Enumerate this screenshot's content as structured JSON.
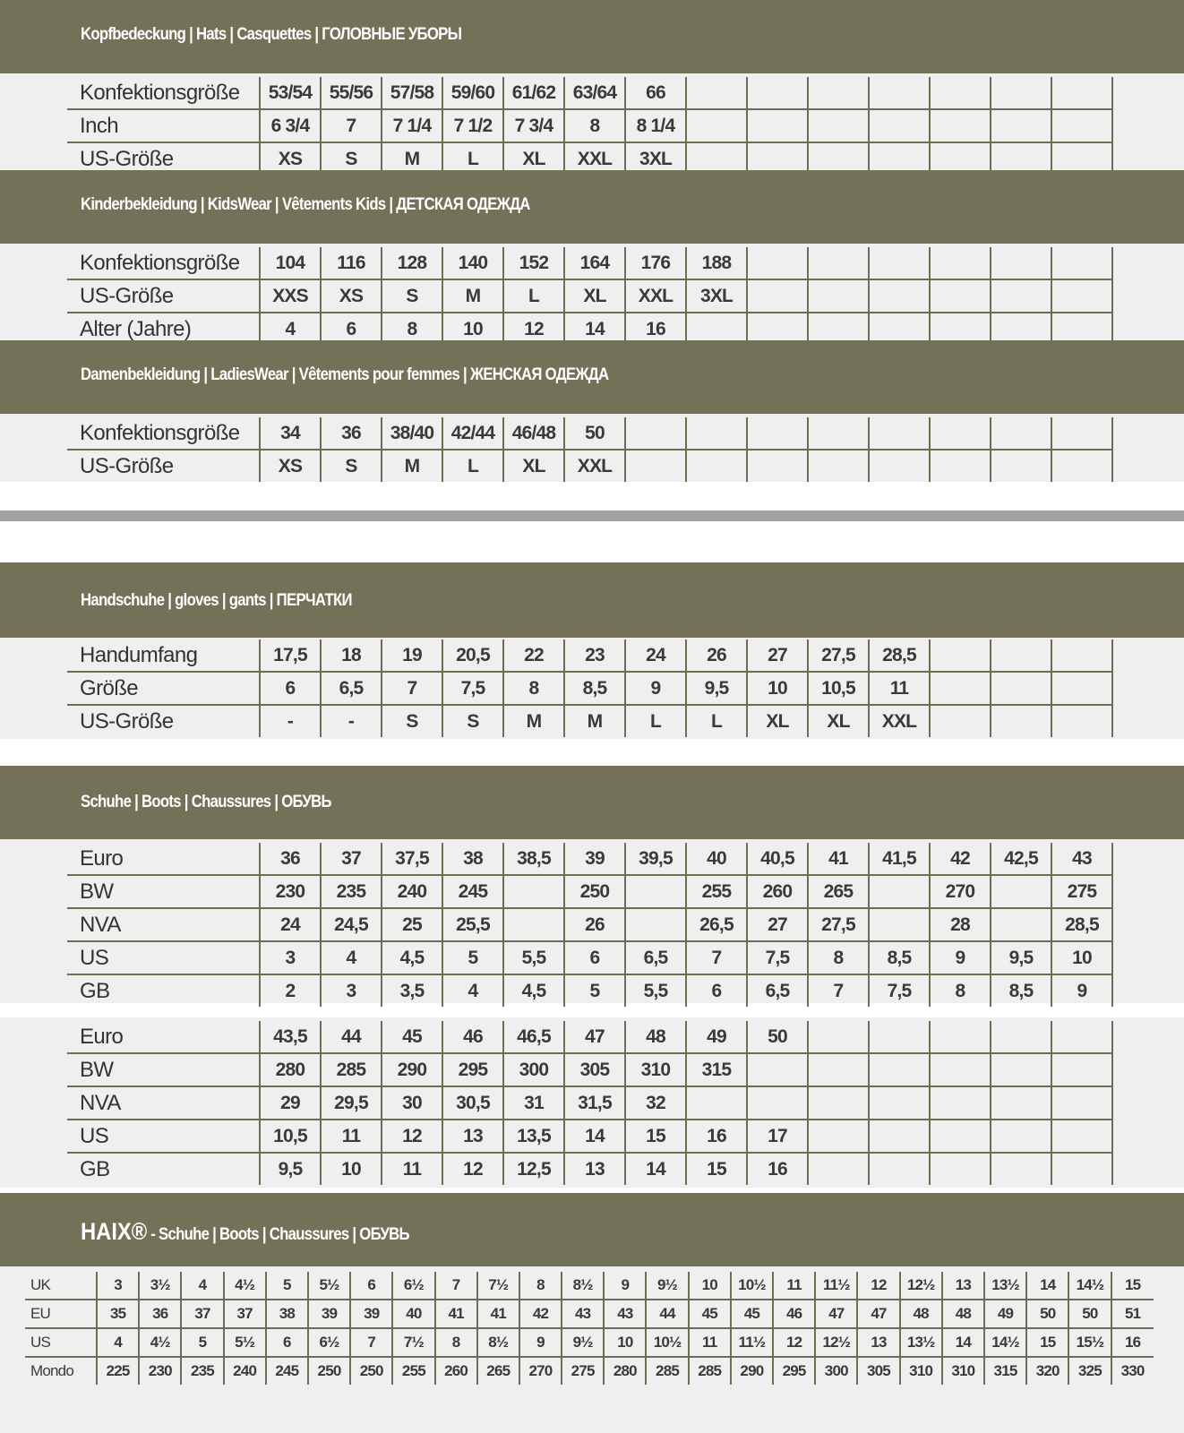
{
  "colors": {
    "band": "#737259",
    "panel": "#efefef",
    "grid": "#6f6e55",
    "divider": "#a0a0a0"
  },
  "sections": [
    {
      "id": "hats",
      "title": "Kopfbedeckung | Hats | Casquettes | ГОЛОВНЫЕ УБОРЫ",
      "rows": [
        {
          "label": "Konfektionsgröße",
          "values": [
            "53/54",
            "55/56",
            "57/58",
            "59/60",
            "61/62",
            "63/64",
            "66",
            "",
            "",
            "",
            "",
            "",
            "",
            ""
          ]
        },
        {
          "label": "Inch",
          "values": [
            "6 3/4",
            "7",
            "7 1/4",
            "7 1/2",
            "7 3/4",
            "8",
            "8 1/4",
            "",
            "",
            "",
            "",
            "",
            "",
            ""
          ]
        },
        {
          "label": "US-Größe",
          "values": [
            "XS",
            "S",
            "M",
            "L",
            "XL",
            "XXL",
            "3XL",
            "",
            "",
            "",
            "",
            "",
            "",
            ""
          ]
        }
      ]
    },
    {
      "id": "kids",
      "title": "Kinderbekleidung | KidsWear | Vêtements Kids | ДЕТСКАЯ ОДЕЖДА",
      "rows": [
        {
          "label": "Konfektionsgröße",
          "values": [
            "104",
            "116",
            "128",
            "140",
            "152",
            "164",
            "176",
            "188",
            "",
            "",
            "",
            "",
            "",
            ""
          ]
        },
        {
          "label": "US-Größe",
          "values": [
            "XXS",
            "XS",
            "S",
            "M",
            "L",
            "XL",
            "XXL",
            "3XL",
            "",
            "",
            "",
            "",
            "",
            ""
          ]
        },
        {
          "label": "Alter (Jahre)",
          "values": [
            "4",
            "6",
            "8",
            "10",
            "12",
            "14",
            "16",
            "",
            "",
            "",
            "",
            "",
            "",
            ""
          ]
        }
      ]
    },
    {
      "id": "ladies",
      "title": "Damenbekleidung | LadiesWear | Vêtements pour femmes | ЖЕНСКАЯ ОДЕЖДА",
      "rows": [
        {
          "label": "Konfektionsgröße",
          "values": [
            "34",
            "36",
            "38/40",
            "42/44",
            "46/48",
            "50",
            "",
            "",
            "",
            "",
            "",
            "",
            "",
            ""
          ]
        },
        {
          "label": "US-Größe",
          "values": [
            "XS",
            "S",
            "M",
            "L",
            "XL",
            "XXL",
            "",
            "",
            "",
            "",
            "",
            "",
            "",
            ""
          ]
        }
      ]
    },
    {
      "id": "gloves",
      "title": "Handschuhe | gloves | gants | ПЕРЧАТКИ",
      "rows": [
        {
          "label": "Handumfang",
          "values": [
            "17,5",
            "18",
            "19",
            "20,5",
            "22",
            "23",
            "24",
            "26",
            "27",
            "27,5",
            "28,5",
            "",
            "",
            ""
          ]
        },
        {
          "label": "Größe",
          "values": [
            "6",
            "6,5",
            "7",
            "7,5",
            "8",
            "8,5",
            "9",
            "9,5",
            "10",
            "10,5",
            "11",
            "",
            "",
            ""
          ]
        },
        {
          "label": "US-Größe",
          "values": [
            "-",
            "-",
            "S",
            "S",
            "M",
            "M",
            "L",
            "L",
            "XL",
            "XL",
            "XXL",
            "",
            "",
            ""
          ]
        }
      ]
    },
    {
      "id": "shoes",
      "title": "Schuhe | Boots | Chaussures | ОБУВЬ",
      "rows": [
        {
          "label": "Euro",
          "values": [
            "36",
            "37",
            "37,5",
            "38",
            "38,5",
            "39",
            "39,5",
            "40",
            "40,5",
            "41",
            "41,5",
            "42",
            "42,5",
            "43"
          ]
        },
        {
          "label": "BW",
          "values": [
            "230",
            "235",
            "240",
            "245",
            "",
            "250",
            "",
            "255",
            "260",
            "265",
            "",
            "270",
            "",
            "275"
          ]
        },
        {
          "label": "NVA",
          "values": [
            "24",
            "24,5",
            "25",
            "25,5",
            "",
            "26",
            "",
            "26,5",
            "27",
            "27,5",
            "",
            "28",
            "",
            "28,5"
          ]
        },
        {
          "label": "US",
          "values": [
            "3",
            "4",
            "4,5",
            "5",
            "5,5",
            "6",
            "6,5",
            "7",
            "7,5",
            "8",
            "8,5",
            "9",
            "9,5",
            "10"
          ]
        },
        {
          "label": "GB",
          "values": [
            "2",
            "3",
            "3,5",
            "4",
            "4,5",
            "5",
            "5,5",
            "6",
            "6,5",
            "7",
            "7,5",
            "8",
            "8,5",
            "9"
          ]
        }
      ]
    },
    {
      "id": "shoes2",
      "title": "",
      "rows": [
        {
          "label": "Euro",
          "values": [
            "43,5",
            "44",
            "45",
            "46",
            "46,5",
            "47",
            "48",
            "49",
            "50",
            "",
            "",
            "",
            "",
            ""
          ]
        },
        {
          "label": "BW",
          "values": [
            "280",
            "285",
            "290",
            "295",
            "300",
            "305",
            "310",
            "315",
            "",
            "",
            "",
            "",
            "",
            ""
          ]
        },
        {
          "label": "NVA",
          "values": [
            "29",
            "29,5",
            "30",
            "30,5",
            "31",
            "31,5",
            "32",
            "",
            "",
            "",
            "",
            "",
            "",
            ""
          ]
        },
        {
          "label": "US",
          "values": [
            "10,5",
            "11",
            "12",
            "13",
            "13,5",
            "14",
            "15",
            "16",
            "17",
            "",
            "",
            "",
            "",
            ""
          ]
        },
        {
          "label": "GB",
          "values": [
            "9,5",
            "10",
            "11",
            "12",
            "12,5",
            "13",
            "14",
            "15",
            "16",
            "",
            "",
            "",
            "",
            ""
          ]
        }
      ]
    }
  ],
  "haix": {
    "brand": "HAIX®",
    "title": " - Schuhe | Boots | Chaussures | ОБУВЬ",
    "rows": [
      {
        "label": "UK",
        "values": [
          "3",
          "3½",
          "4",
          "4½",
          "5",
          "5½",
          "6",
          "6½",
          "7",
          "7½",
          "8",
          "8½",
          "9",
          "9½",
          "10",
          "10½",
          "11",
          "11½",
          "12",
          "12½",
          "13",
          "13½",
          "14",
          "14½",
          "15"
        ]
      },
      {
        "label": "EU",
        "values": [
          "35",
          "36",
          "37",
          "37",
          "38",
          "39",
          "39",
          "40",
          "41",
          "41",
          "42",
          "43",
          "43",
          "44",
          "45",
          "45",
          "46",
          "47",
          "47",
          "48",
          "48",
          "49",
          "50",
          "50",
          "51"
        ]
      },
      {
        "label": "US",
        "values": [
          "4",
          "4½",
          "5",
          "5½",
          "6",
          "6½",
          "7",
          "7½",
          "8",
          "8½",
          "9",
          "9½",
          "10",
          "10½",
          "11",
          "11½",
          "12",
          "12½",
          "13",
          "13½",
          "14",
          "14½",
          "15",
          "15½",
          "16"
        ]
      },
      {
        "label": "Mondo",
        "values": [
          "225",
          "230",
          "235",
          "240",
          "245",
          "250",
          "250",
          "255",
          "260",
          "265",
          "270",
          "275",
          "280",
          "285",
          "285",
          "290",
          "295",
          "300",
          "305",
          "310",
          "310",
          "315",
          "320",
          "325",
          "330"
        ]
      }
    ]
  }
}
